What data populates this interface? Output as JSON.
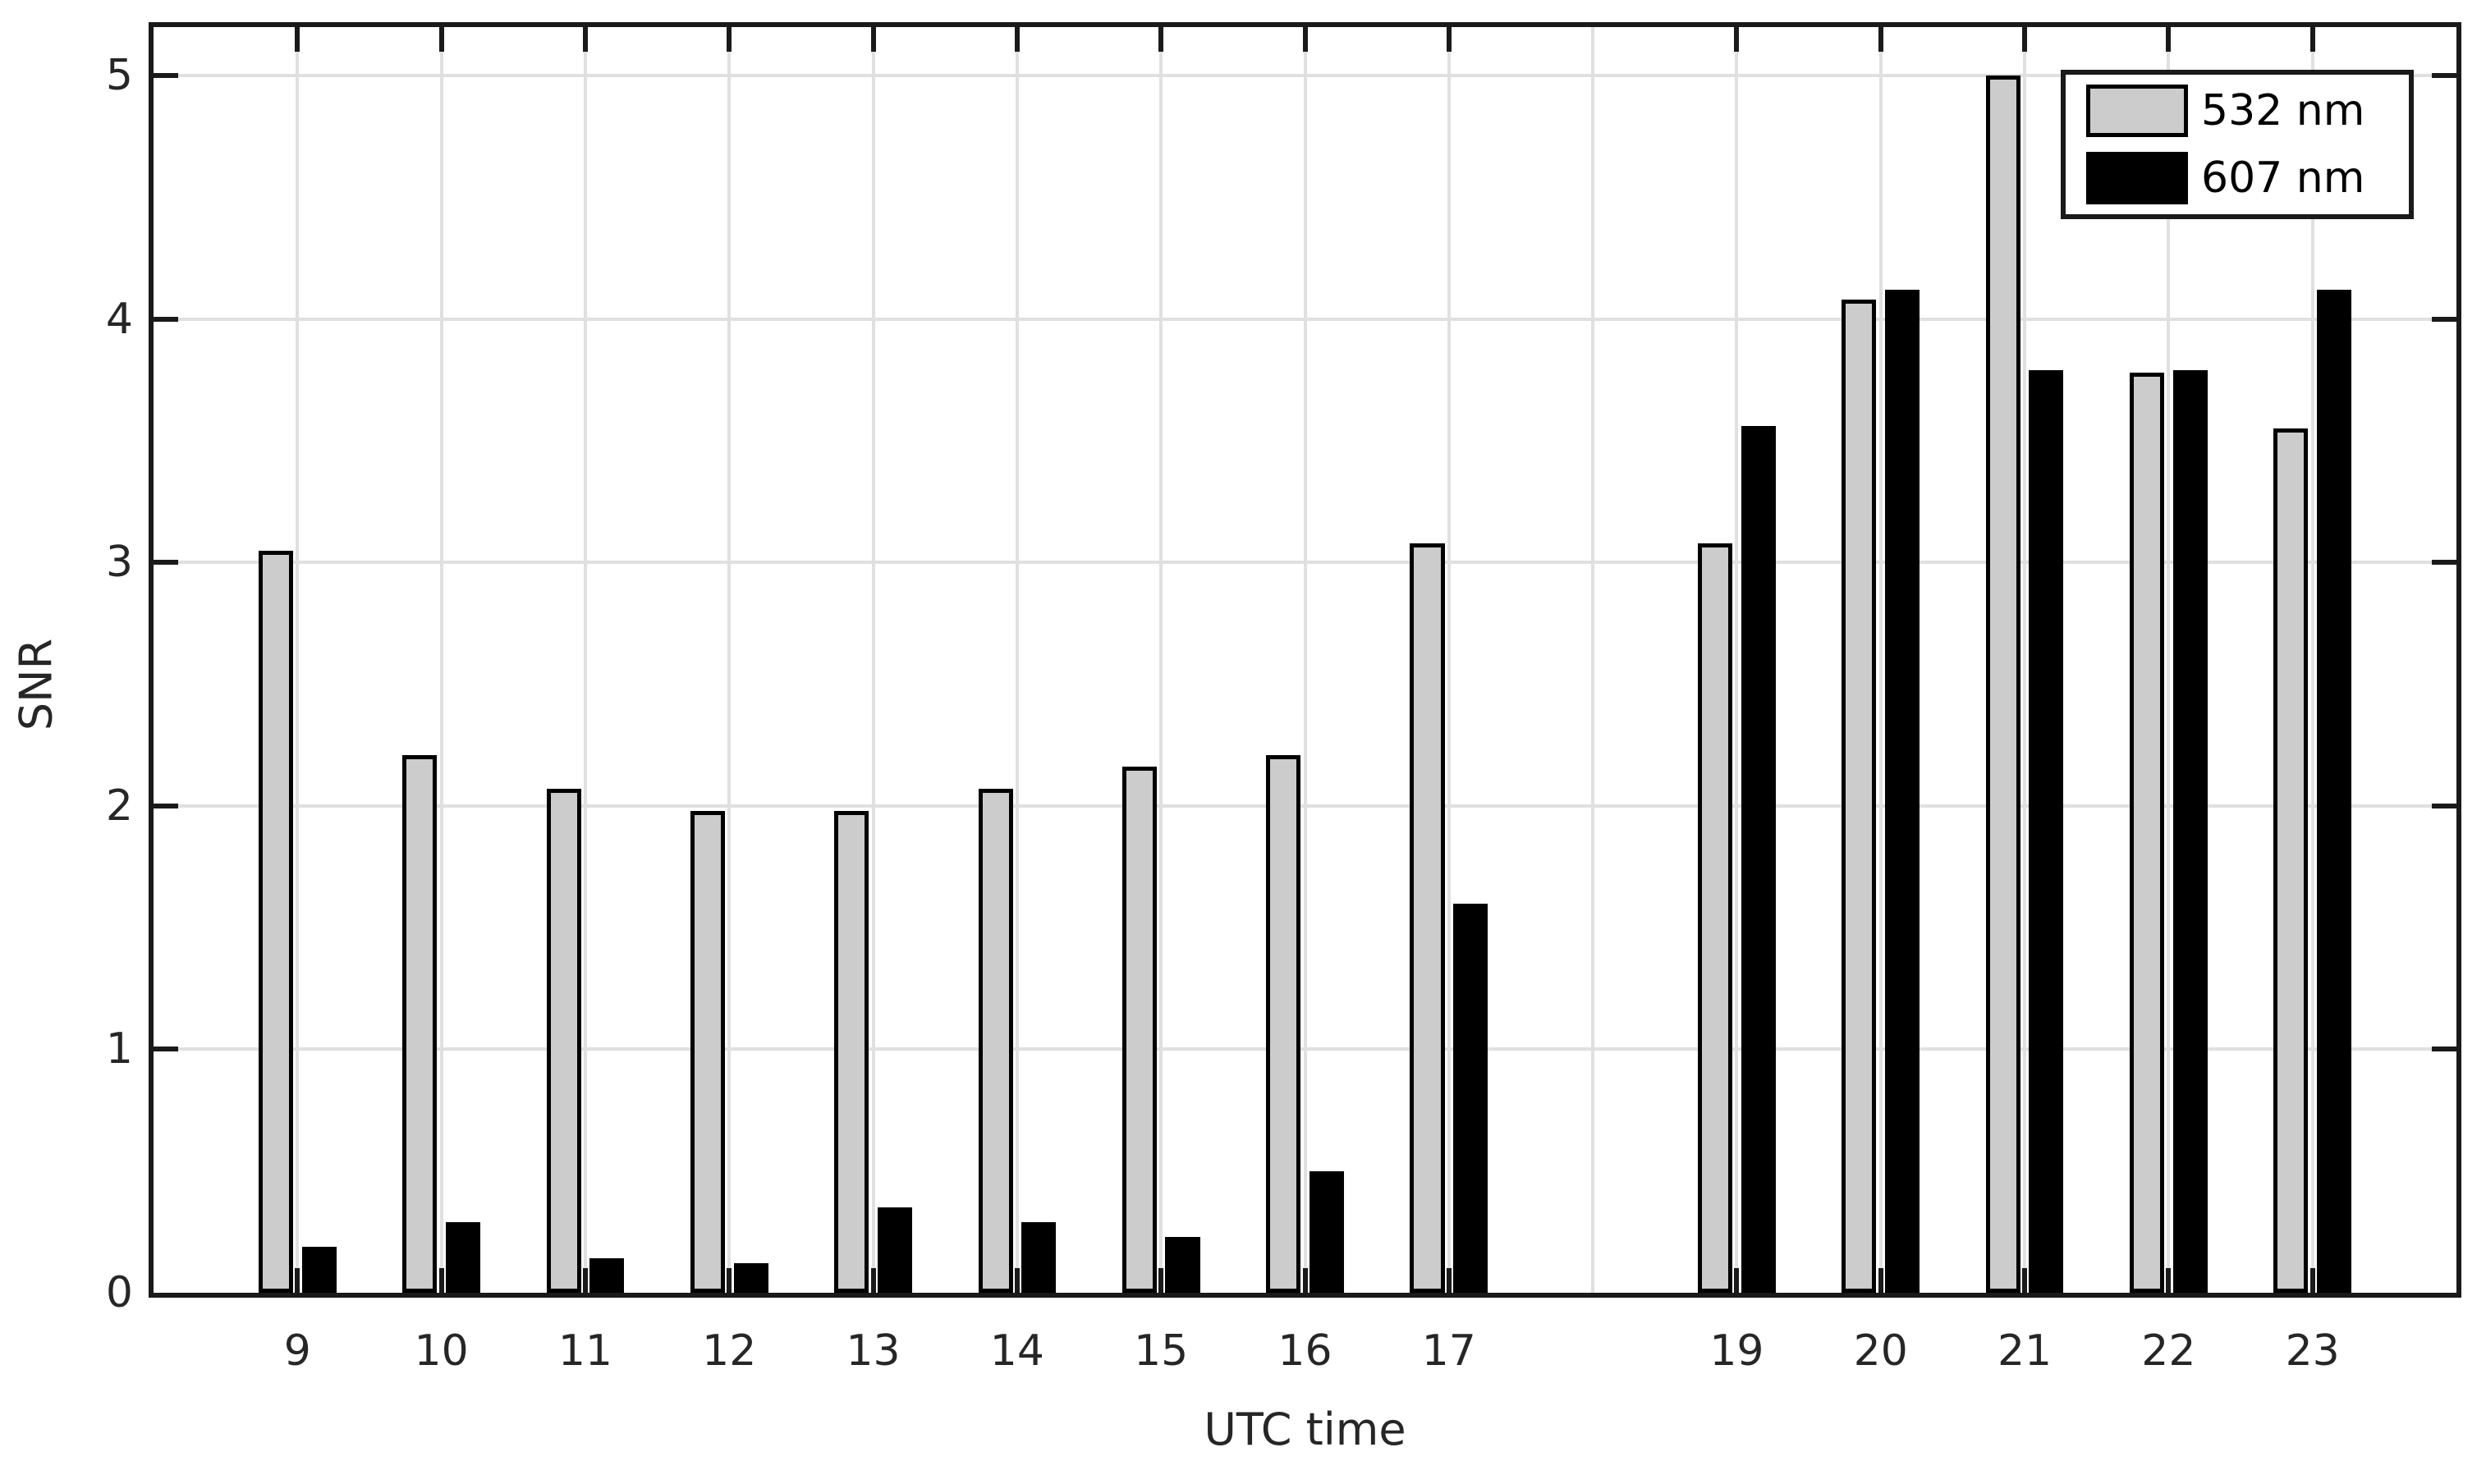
{
  "figure": {
    "xlabel": "UTC time",
    "ylabel": "SNR"
  },
  "colors": {
    "bar_532nm_fill": "#cccccc",
    "bar_607nm_fill": "#000000",
    "bar_edge": "#000000",
    "axis_frame": "#1a1a1a",
    "gridline": "#e0e0e0",
    "text": "#262626",
    "background": "#ffffff"
  },
  "chart_data": {
    "type": "bar",
    "title": "",
    "xlabel": "UTC time",
    "ylabel": "SNR",
    "categories": [
      9,
      10,
      11,
      12,
      13,
      14,
      15,
      16,
      17,
      19,
      20,
      21,
      22,
      23
    ],
    "series": [
      {
        "name": "532 nm",
        "color": "#cccccc",
        "values": [
          3.05,
          2.21,
          2.07,
          1.98,
          1.98,
          2.07,
          2.16,
          2.21,
          3.08,
          3.08,
          4.08,
          5.0,
          3.78,
          3.55
        ]
      },
      {
        "name": "607 nm",
        "color": "#000000",
        "values": [
          0.19,
          0.29,
          0.14,
          0.12,
          0.35,
          0.29,
          0.23,
          0.5,
          1.6,
          3.56,
          4.12,
          3.79,
          3.79,
          4.12
        ]
      }
    ],
    "xlim": [
      8,
      24
    ],
    "ylim": [
      0,
      5.2
    ],
    "yticks": [
      0,
      1,
      2,
      3,
      4,
      5
    ],
    "ytick_labels": [
      "0",
      "1",
      "2",
      "3",
      "4",
      "5"
    ],
    "xgrid_positions": [
      9,
      10,
      11,
      12,
      13,
      14,
      15,
      16,
      17,
      18,
      19,
      20,
      21,
      22,
      23
    ],
    "grid": true,
    "legend_position": "top-right",
    "legend_entries": [
      "532 nm",
      "607 nm"
    ]
  }
}
